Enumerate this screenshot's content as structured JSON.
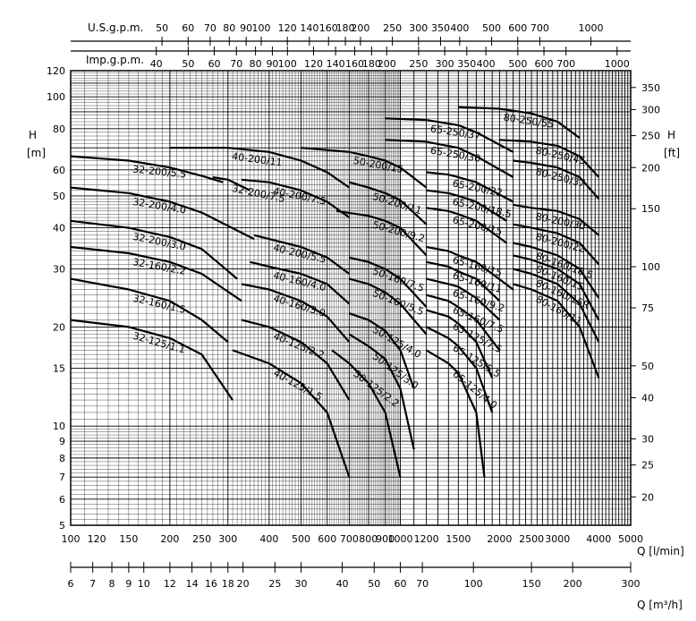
{
  "chart_data": {
    "type": "line",
    "x_axis": {
      "label": "Q [l/min]",
      "scale": "log",
      "range": [
        100,
        5000
      ],
      "ticks": [
        "100",
        "120",
        "150",
        "200",
        "250",
        "300",
        "400",
        "500",
        "600",
        "700",
        "800",
        "900",
        "1000",
        "1200",
        "1500",
        "2000",
        "2500",
        "3000",
        "4000",
        "5000"
      ]
    },
    "x_axis_m3h": {
      "label": "Q [m³/h]",
      "scale": "log",
      "range": [
        6,
        300
      ],
      "ticks": [
        "6",
        "7",
        "8",
        "9",
        "10",
        "12",
        "14",
        "16",
        "18",
        "20",
        "25",
        "30",
        "40",
        "50",
        "60",
        "70",
        "100",
        "150",
        "200",
        "300"
      ]
    },
    "x_axis_usgpm": {
      "label": "U.S.g.p.m.",
      "ticks": [
        "50",
        "60",
        "70",
        "80",
        "90",
        "100",
        "120",
        "140",
        "160",
        "180",
        "200",
        "250",
        "300",
        "350",
        "400",
        "500",
        "600",
        "700",
        "1000"
      ]
    },
    "x_axis_impgpm": {
      "label": "Imp.g.p.m.",
      "ticks": [
        "40",
        "50",
        "60",
        "70",
        "80",
        "90",
        "100",
        "120",
        "140",
        "160",
        "180",
        "200",
        "250",
        "300",
        "350",
        "400",
        "500",
        "600",
        "700",
        "1000"
      ]
    },
    "y_axis": {
      "label": "H",
      "unit": "[m]",
      "scale": "log",
      "range": [
        5,
        120
      ],
      "ticks": [
        "5",
        "6",
        "7",
        "8",
        "9",
        "10",
        "15",
        "20",
        "30",
        "40",
        "50",
        "60",
        "80",
        "100",
        "120"
      ]
    },
    "y_axis_ft": {
      "label": "H",
      "unit": "[ft]",
      "ticks": [
        "20",
        "25",
        "30",
        "40",
        "50",
        "75",
        "100",
        "150",
        "200",
        "250",
        "300",
        "350"
      ]
    },
    "grid": true,
    "series": [
      {
        "name": "32-125/1.1",
        "x": [
          100,
          150,
          200,
          250,
          310
        ],
        "y": [
          21,
          20,
          18.5,
          16.5,
          12
        ]
      },
      {
        "name": "32-160/1.5",
        "x": [
          100,
          150,
          200,
          250,
          300
        ],
        "y": [
          28,
          26,
          24,
          21,
          18
        ]
      },
      {
        "name": "32-160/2.2",
        "x": [
          100,
          150,
          200,
          250,
          330
        ],
        "y": [
          35,
          33.5,
          31.5,
          29,
          24
        ]
      },
      {
        "name": "32-200/3.0",
        "x": [
          100,
          150,
          200,
          250,
          320
        ],
        "y": [
          42,
          40,
          37.5,
          34.5,
          28
        ]
      },
      {
        "name": "32-200/4.0",
        "x": [
          100,
          150,
          200,
          250,
          360
        ],
        "y": [
          53,
          51,
          48,
          44.5,
          37
        ]
      },
      {
        "name": "32-200/5.5",
        "x": [
          100,
          150,
          200,
          250,
          290
        ],
        "y": [
          66,
          64,
          61,
          57.5,
          55
        ]
      },
      {
        "name": "32-200/7.5",
        "x": [
          270,
          300,
          350
        ],
        "y": [
          57,
          56,
          52
        ]
      },
      {
        "name": "40-125/1.5",
        "x": [
          310,
          400,
          500,
          600,
          700
        ],
        "y": [
          17,
          15.5,
          13.5,
          11,
          7
        ]
      },
      {
        "name": "40-125/2.2",
        "x": [
          330,
          400,
          500,
          600,
          700
        ],
        "y": [
          21,
          20,
          18,
          15.5,
          12
        ]
      },
      {
        "name": "40-160/3.0",
        "x": [
          330,
          400,
          500,
          600,
          700
        ],
        "y": [
          27,
          26,
          24,
          21.5,
          18
        ]
      },
      {
        "name": "40-160/4.0",
        "x": [
          350,
          400,
          500,
          600,
          700
        ],
        "y": [
          31.5,
          30.5,
          29,
          27,
          23.5
        ]
      },
      {
        "name": "40-200/5.5",
        "x": [
          360,
          400,
          500,
          600,
          700
        ],
        "y": [
          38,
          37,
          35,
          32.5,
          29
        ]
      },
      {
        "name": "40-200/7.5",
        "x": [
          330,
          400,
          500,
          600,
          700
        ],
        "y": [
          56,
          55,
          52,
          48,
          43
        ]
      },
      {
        "name": "40-200/11",
        "x": [
          200,
          300,
          400,
          500,
          600,
          700
        ],
        "y": [
          70,
          70,
          68,
          64,
          59,
          53
        ]
      },
      {
        "name": "50-125/2.2",
        "x": [
          620,
          700,
          800,
          900,
          1000
        ],
        "y": [
          17,
          15.5,
          13.5,
          11,
          7
        ]
      },
      {
        "name": "50-125/3.0",
        "x": [
          700,
          800,
          900,
          1000,
          1100
        ],
        "y": [
          19,
          17.5,
          16,
          13,
          8.5
        ]
      },
      {
        "name": "50-125/4.0",
        "x": [
          700,
          800,
          900,
          1000,
          1100
        ],
        "y": [
          22,
          21,
          19.5,
          17,
          13
        ]
      },
      {
        "name": "50-160/5.5",
        "x": [
          700,
          800,
          900,
          1000,
          1200
        ],
        "y": [
          28,
          27,
          25.5,
          23.5,
          19
        ]
      },
      {
        "name": "50-160/7.5",
        "x": [
          700,
          800,
          900,
          1000,
          1200
        ],
        "y": [
          32.5,
          31.5,
          30,
          28,
          23
        ]
      },
      {
        "name": "50-200/9.2",
        "x": [
          640,
          800,
          900,
          1000,
          1200
        ],
        "y": [
          45,
          43.5,
          42,
          40,
          33
        ]
      },
      {
        "name": "50-200/11",
        "x": [
          700,
          800,
          900,
          1000,
          1200
        ],
        "y": [
          55,
          53,
          51,
          48.5,
          41
        ]
      },
      {
        "name": "50-200/15",
        "x": [
          500,
          700,
          800,
          900,
          1000,
          1200
        ],
        "y": [
          70,
          68,
          66,
          64,
          61,
          53
        ]
      },
      {
        "name": "65-125/4.0",
        "x": [
          1200,
          1400,
          1500,
          1700,
          1800
        ],
        "y": [
          17,
          15.5,
          14.5,
          11,
          7
        ]
      },
      {
        "name": "65-125/5.5",
        "x": [
          1200,
          1400,
          1500,
          1700,
          1900
        ],
        "y": [
          20,
          18.5,
          17.5,
          15,
          11
        ]
      },
      {
        "name": "65-125/7.5",
        "x": [
          1200,
          1400,
          1500,
          1700,
          1900
        ],
        "y": [
          22.5,
          21.5,
          20.5,
          18,
          14
        ]
      },
      {
        "name": "65-160/7.5",
        "x": [
          1200,
          1400,
          1500,
          1700,
          2000
        ],
        "y": [
          25,
          24,
          23,
          21,
          17
        ]
      },
      {
        "name": "65-160/9.2",
        "x": [
          1200,
          1400,
          1500,
          1700,
          2000
        ],
        "y": [
          28,
          27,
          26.5,
          24.5,
          21
        ]
      },
      {
        "name": "65-160/11",
        "x": [
          1200,
          1400,
          1500,
          1700,
          2000
        ],
        "y": [
          31.5,
          30.5,
          29.5,
          28,
          24
        ]
      },
      {
        "name": "65-160/15",
        "x": [
          1200,
          1400,
          1500,
          1700,
          2200
        ],
        "y": [
          35,
          34,
          33,
          31.5,
          26
        ]
      },
      {
        "name": "65-200/15",
        "x": [
          1200,
          1400,
          1500,
          1700,
          2100
        ],
        "y": [
          46,
          45,
          44,
          42,
          36
        ]
      },
      {
        "name": "65-200/18.5",
        "x": [
          1200,
          1400,
          1500,
          1700,
          2100
        ],
        "y": [
          52,
          51,
          50,
          48,
          42
        ]
      },
      {
        "name": "65-200/22",
        "x": [
          1200,
          1400,
          1500,
          1700,
          2200
        ],
        "y": [
          59,
          58,
          57,
          55,
          48
        ]
      },
      {
        "name": "65-250/30",
        "x": [
          900,
          1200,
          1500,
          1700,
          2200
        ],
        "y": [
          74,
          73,
          70,
          66,
          57
        ]
      },
      {
        "name": "65-250/37",
        "x": [
          900,
          1200,
          1500,
          1700,
          2200
        ],
        "y": [
          86,
          85,
          82,
          78,
          68
        ]
      },
      {
        "name": "80-160/11",
        "x": [
          2200,
          2500,
          3000,
          3500,
          4000
        ],
        "y": [
          27,
          26,
          24,
          20,
          14
        ]
      },
      {
        "name": "80-160/15R",
        "x": [
          2200,
          2500,
          3000,
          3500,
          4000
        ],
        "y": [
          30,
          29,
          27,
          23.5,
          18
        ]
      },
      {
        "name": "80-160/15",
        "x": [
          2200,
          2500,
          3000,
          3500,
          4000
        ],
        "y": [
          33,
          32,
          30,
          27,
          21
        ]
      },
      {
        "name": "80-160/18.5",
        "x": [
          2200,
          2500,
          3000,
          3500,
          4000
        ],
        "y": [
          36,
          35,
          33,
          30,
          24.5
        ]
      },
      {
        "name": "80-200/22",
        "x": [
          2200,
          2500,
          3000,
          3500,
          4000
        ],
        "y": [
          41,
          40,
          38.5,
          36,
          31
        ]
      },
      {
        "name": "80-200/30",
        "x": [
          2200,
          2500,
          3000,
          3500,
          4000
        ],
        "y": [
          47,
          46,
          45,
          42.5,
          38
        ]
      },
      {
        "name": "80-250/37",
        "x": [
          2200,
          2500,
          3000,
          3500,
          4000
        ],
        "y": [
          64,
          63,
          61,
          57,
          49
        ]
      },
      {
        "name": "80-250/45",
        "x": [
          2000,
          2500,
          3000,
          3500,
          4000
        ],
        "y": [
          74,
          73,
          71,
          66,
          57
        ]
      },
      {
        "name": "80-250/55",
        "x": [
          1500,
          2000,
          2500,
          3000,
          3500
        ],
        "y": [
          93,
          92,
          89,
          84,
          75
        ]
      }
    ]
  }
}
